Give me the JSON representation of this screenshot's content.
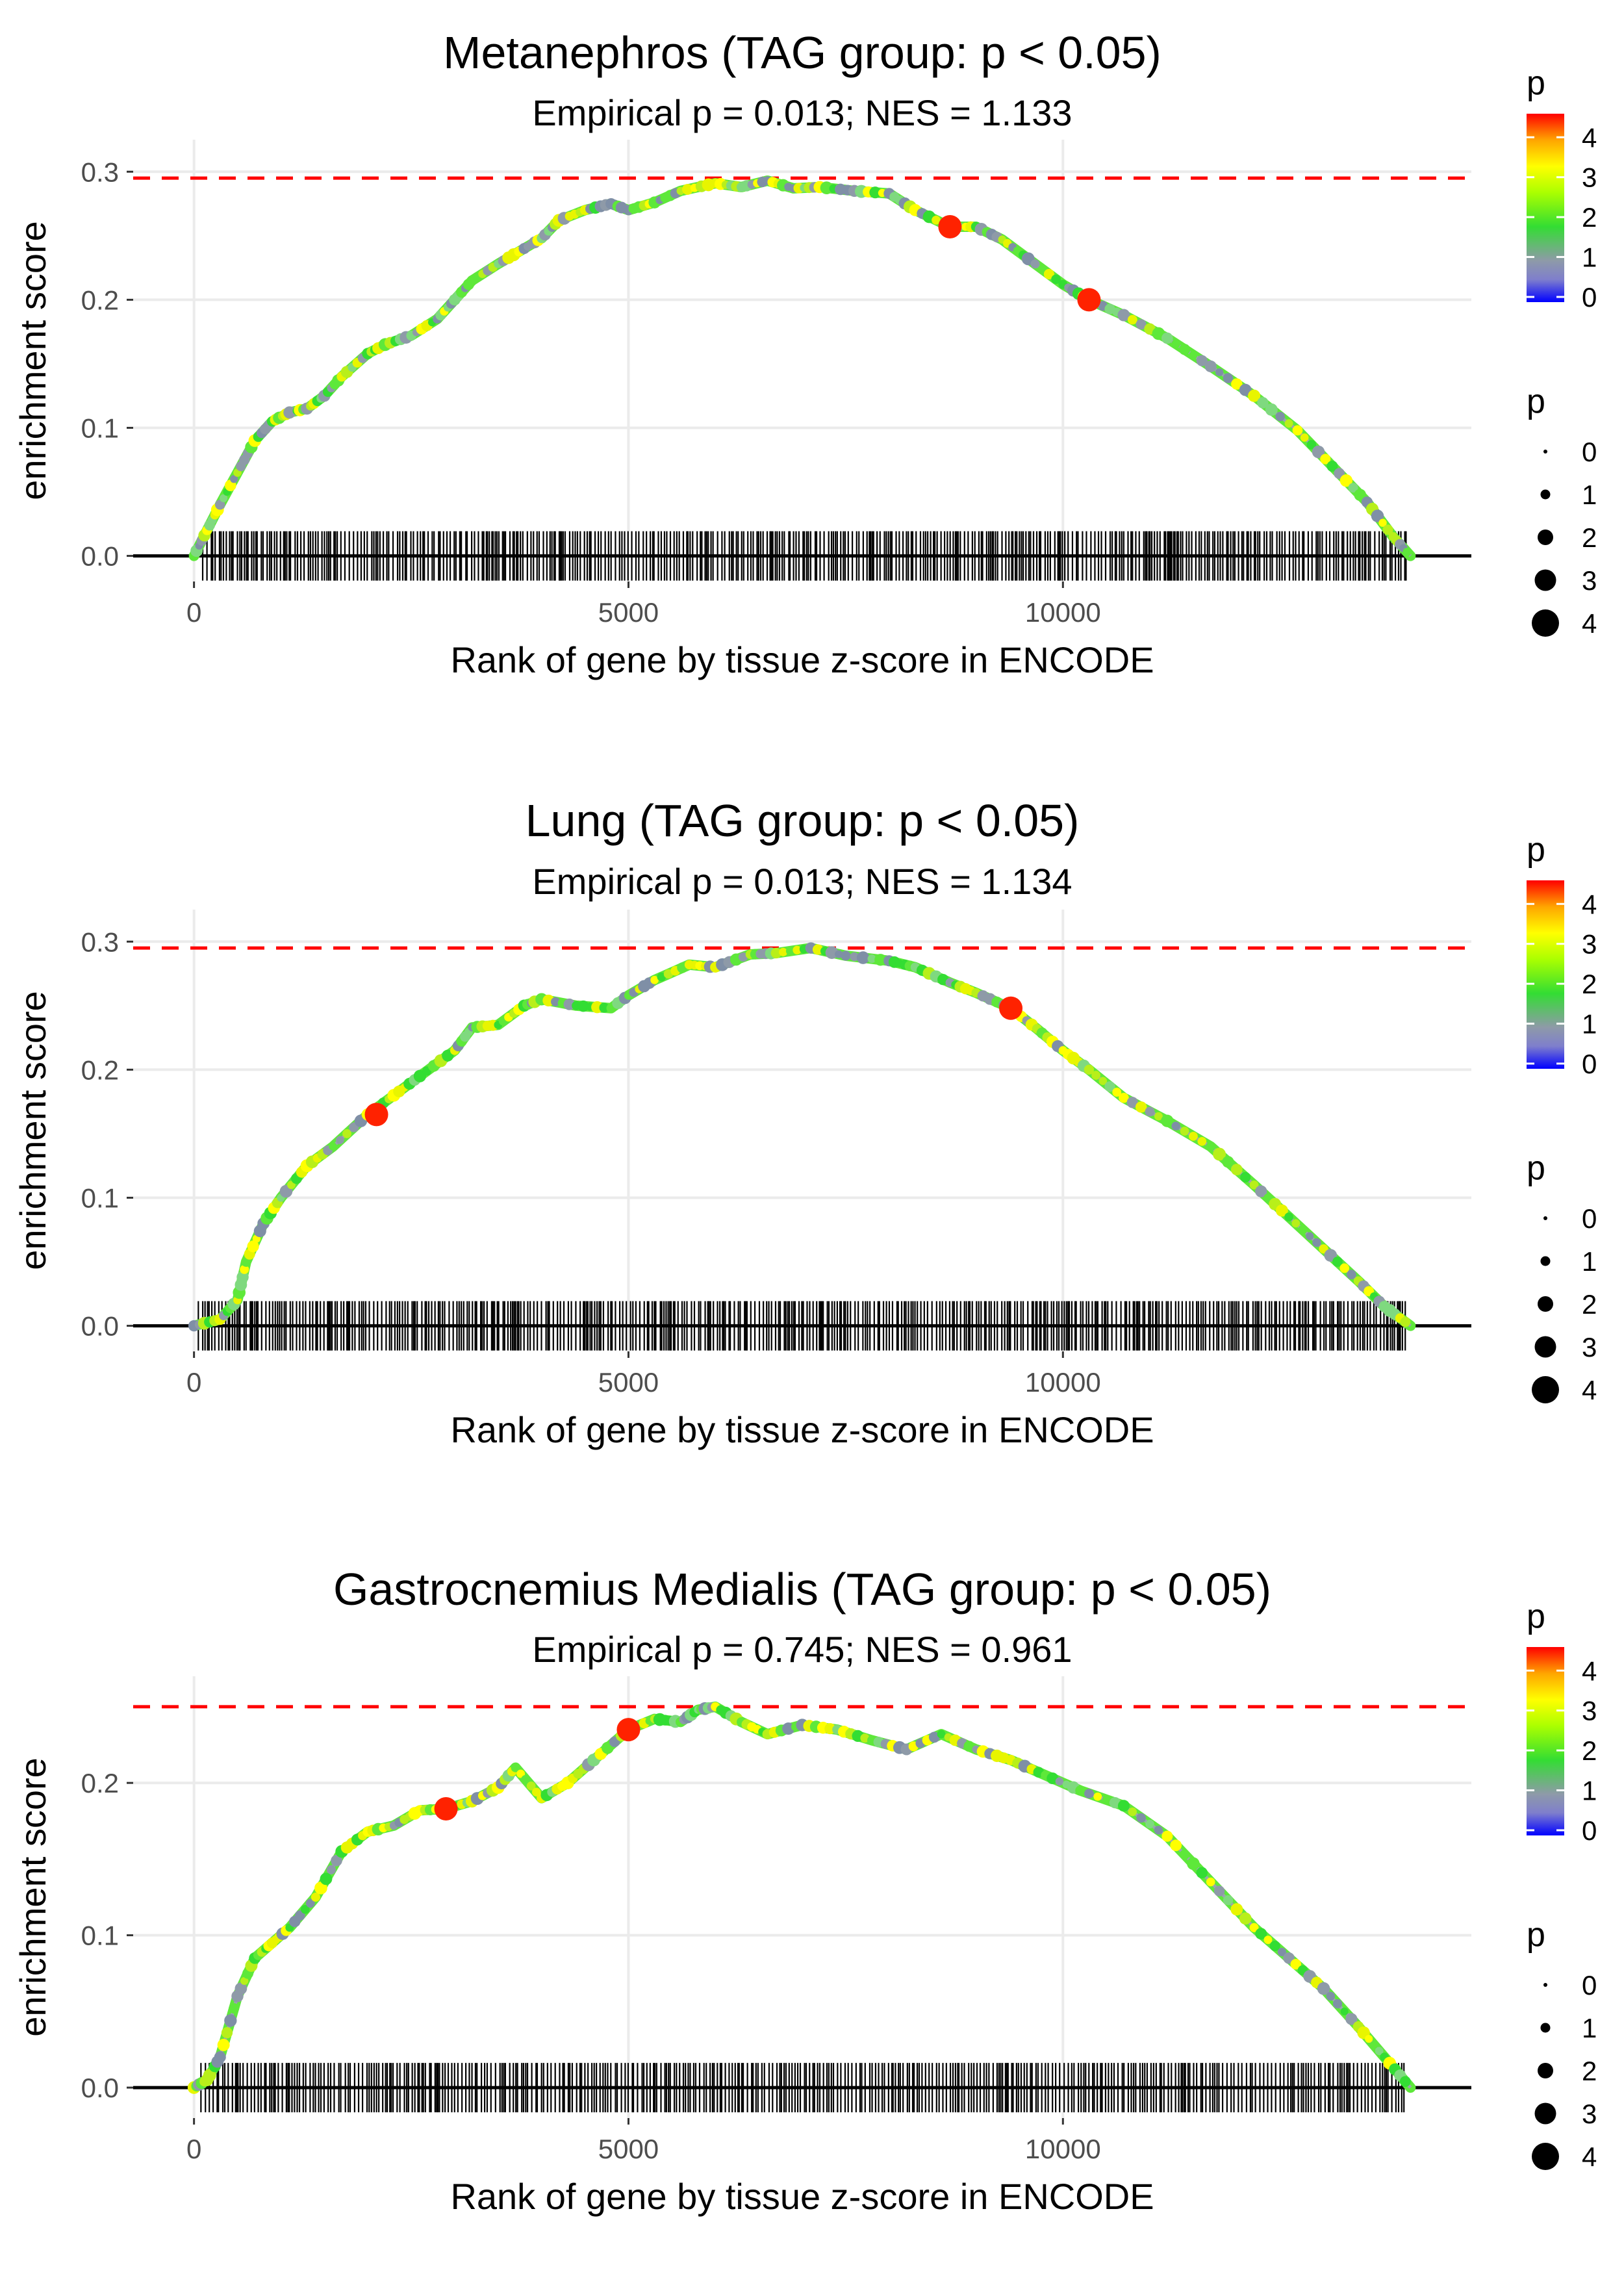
{
  "colors": {
    "threshold_line": "#ff0000",
    "rug": "#000000",
    "highlight": "#ff2200",
    "grid": "#ebebeb"
  },
  "legend": {
    "color_title": "p",
    "color_ticks": [
      0,
      1,
      2,
      3,
      4
    ],
    "size_title": "p",
    "size_values": [
      0,
      1,
      2,
      3,
      4
    ]
  },
  "chart_data": [
    {
      "type": "line",
      "title": "Metanephros (TAG group: p < 0.05)",
      "subtitle": "Empirical p = 0.013; NES = 1.133",
      "xlabel": "Rank of gene by tissue z-score in ENCODE",
      "ylabel": "enrichment score",
      "xlim": [
        -700,
        14700
      ],
      "ylim": [
        -0.02,
        0.325
      ],
      "x_ticks": [
        0,
        5000,
        10000
      ],
      "x_tick_labels": [
        "0",
        "5000",
        "10000"
      ],
      "y_ticks": [
        0.0,
        0.1,
        0.2,
        0.3
      ],
      "y_tick_labels": [
        "0.0",
        "0.1",
        "0.2",
        "0.3"
      ],
      "max_es": 0.295,
      "curve": [
        [
          0,
          0
        ],
        [
          150,
          0.02
        ],
        [
          300,
          0.04
        ],
        [
          500,
          0.065
        ],
        [
          700,
          0.09
        ],
        [
          900,
          0.105
        ],
        [
          1100,
          0.112
        ],
        [
          1300,
          0.115
        ],
        [
          1500,
          0.125
        ],
        [
          1700,
          0.14
        ],
        [
          2000,
          0.158
        ],
        [
          2200,
          0.165
        ],
        [
          2500,
          0.172
        ],
        [
          2800,
          0.185
        ],
        [
          3000,
          0.2
        ],
        [
          3200,
          0.215
        ],
        [
          3500,
          0.228
        ],
        [
          3800,
          0.24
        ],
        [
          4000,
          0.248
        ],
        [
          4200,
          0.262
        ],
        [
          4500,
          0.27
        ],
        [
          4800,
          0.275
        ],
        [
          5000,
          0.27
        ],
        [
          5300,
          0.276
        ],
        [
          5600,
          0.285
        ],
        [
          6000,
          0.291
        ],
        [
          6300,
          0.288
        ],
        [
          6600,
          0.293
        ],
        [
          6900,
          0.287
        ],
        [
          7200,
          0.288
        ],
        [
          7600,
          0.285
        ],
        [
          8000,
          0.283
        ],
        [
          8300,
          0.27
        ],
        [
          8700,
          0.257
        ],
        [
          9000,
          0.257
        ],
        [
          9300,
          0.247
        ],
        [
          9600,
          0.232
        ],
        [
          10000,
          0.212
        ],
        [
          10300,
          0.2
        ],
        [
          10700,
          0.188
        ],
        [
          11200,
          0.17
        ],
        [
          11700,
          0.148
        ],
        [
          12200,
          0.125
        ],
        [
          12700,
          0.098
        ],
        [
          13100,
          0.07
        ],
        [
          13500,
          0.042
        ],
        [
          13800,
          0.015
        ],
        [
          14000,
          0
        ]
      ],
      "highlights": [
        [
          8700,
          0.257
        ],
        [
          10300,
          0.2
        ]
      ],
      "rug_range": [
        100,
        13950
      ]
    },
    {
      "type": "line",
      "title": "Lung (TAG group: p < 0.05)",
      "subtitle": "Empirical p = 0.013; NES = 1.134",
      "xlabel": "Rank of gene by tissue z-score in ENCODE",
      "ylabel": "enrichment score",
      "xlim": [
        -700,
        14700
      ],
      "ylim": [
        -0.02,
        0.325
      ],
      "x_ticks": [
        0,
        5000,
        10000
      ],
      "x_tick_labels": [
        "0",
        "5000",
        "10000"
      ],
      "y_ticks": [
        0.0,
        0.1,
        0.2,
        0.3
      ],
      "y_tick_labels": [
        "0.0",
        "0.1",
        "0.2",
        "0.3"
      ],
      "max_es": 0.295,
      "curve": [
        [
          0,
          0
        ],
        [
          300,
          0.005
        ],
        [
          500,
          0.02
        ],
        [
          600,
          0.05
        ],
        [
          800,
          0.08
        ],
        [
          1000,
          0.1
        ],
        [
          1300,
          0.125
        ],
        [
          1600,
          0.14
        ],
        [
          2000,
          0.165
        ],
        [
          2300,
          0.18
        ],
        [
          2600,
          0.195
        ],
        [
          3000,
          0.215
        ],
        [
          3200,
          0.233
        ],
        [
          3500,
          0.235
        ],
        [
          3800,
          0.25
        ],
        [
          4000,
          0.255
        ],
        [
          4400,
          0.25
        ],
        [
          4800,
          0.248
        ],
        [
          5000,
          0.258
        ],
        [
          5300,
          0.27
        ],
        [
          5700,
          0.282
        ],
        [
          6000,
          0.28
        ],
        [
          6400,
          0.29
        ],
        [
          6700,
          0.291
        ],
        [
          7100,
          0.295
        ],
        [
          7500,
          0.289
        ],
        [
          8000,
          0.285
        ],
        [
          8300,
          0.28
        ],
        [
          8700,
          0.268
        ],
        [
          9000,
          0.26
        ],
        [
          9400,
          0.248
        ],
        [
          9700,
          0.232
        ],
        [
          10000,
          0.215
        ],
        [
          10300,
          0.2
        ],
        [
          10700,
          0.178
        ],
        [
          11200,
          0.16
        ],
        [
          11700,
          0.14
        ],
        [
          12200,
          0.11
        ],
        [
          12600,
          0.085
        ],
        [
          13000,
          0.06
        ],
        [
          13400,
          0.035
        ],
        [
          13700,
          0.015
        ],
        [
          14000,
          0
        ]
      ],
      "highlights": [
        [
          2100,
          0.165
        ],
        [
          9400,
          0.248
        ]
      ],
      "rug_range": [
        50,
        13950
      ]
    },
    {
      "type": "line",
      "title": "Gastrocnemius Medialis (TAG group: p < 0.05)",
      "subtitle": "Empirical p = 0.745; NES = 0.961",
      "xlabel": "Rank of gene by tissue z-score in ENCODE",
      "ylabel": "enrichment score",
      "xlim": [
        -700,
        14700
      ],
      "ylim": [
        -0.02,
        0.27
      ],
      "x_ticks": [
        0,
        5000,
        10000
      ],
      "x_tick_labels": [
        "0",
        "5000",
        "10000"
      ],
      "y_ticks": [
        0.0,
        0.1,
        0.2
      ],
      "y_tick_labels": [
        "0.0",
        "0.1",
        "0.2"
      ],
      "max_es": 0.25,
      "curve": [
        [
          0,
          0
        ],
        [
          150,
          0.005
        ],
        [
          300,
          0.02
        ],
        [
          500,
          0.06
        ],
        [
          700,
          0.085
        ],
        [
          900,
          0.095
        ],
        [
          1100,
          0.105
        ],
        [
          1400,
          0.125
        ],
        [
          1700,
          0.155
        ],
        [
          2000,
          0.168
        ],
        [
          2300,
          0.172
        ],
        [
          2600,
          0.182
        ],
        [
          2900,
          0.183
        ],
        [
          3200,
          0.188
        ],
        [
          3500,
          0.197
        ],
        [
          3700,
          0.21
        ],
        [
          4000,
          0.19
        ],
        [
          4300,
          0.2
        ],
        [
          4600,
          0.215
        ],
        [
          5000,
          0.235
        ],
        [
          5300,
          0.242
        ],
        [
          5600,
          0.24
        ],
        [
          5800,
          0.248
        ],
        [
          6000,
          0.25
        ],
        [
          6300,
          0.24
        ],
        [
          6600,
          0.232
        ],
        [
          7000,
          0.238
        ],
        [
          7400,
          0.235
        ],
        [
          7800,
          0.228
        ],
        [
          8200,
          0.222
        ],
        [
          8600,
          0.232
        ],
        [
          9000,
          0.222
        ],
        [
          9400,
          0.215
        ],
        [
          9800,
          0.205
        ],
        [
          10200,
          0.195
        ],
        [
          10700,
          0.185
        ],
        [
          11200,
          0.165
        ],
        [
          11700,
          0.135
        ],
        [
          12200,
          0.105
        ],
        [
          12600,
          0.085
        ],
        [
          13000,
          0.065
        ],
        [
          13400,
          0.04
        ],
        [
          13700,
          0.02
        ],
        [
          14000,
          0
        ]
      ],
      "highlights": [
        [
          2900,
          0.183
        ],
        [
          5000,
          0.235
        ]
      ],
      "rug_range": [
        80,
        13950
      ]
    }
  ]
}
